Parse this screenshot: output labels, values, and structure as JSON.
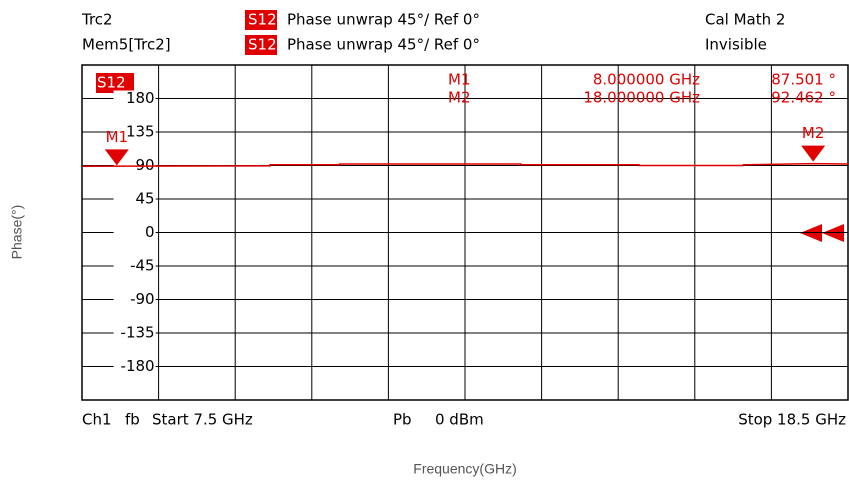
{
  "chart_data": {
    "type": "line",
    "header": [
      {
        "trace": "Trc2",
        "param": "S12",
        "format": "Phase unwrap  45°/  Ref 0°",
        "extra": "Cal Math  2"
      },
      {
        "trace": "Mem5[Trc2]",
        "param": "S12",
        "format": "Phase unwrap  45°/  Ref 0°",
        "extra": "Invisible"
      }
    ],
    "trace_label": "S12",
    "xlabel": "Frequency(GHz)",
    "ylabel": "Phase(°)",
    "xlim": [
      7.5,
      18.5
    ],
    "ylim": [
      -225,
      225
    ],
    "yticks": [
      180,
      135,
      90,
      45,
      0,
      -45,
      -90,
      -135,
      -180
    ],
    "color": "#e00000",
    "series": [
      {
        "name": "S12",
        "x": [
          7.5,
          10.2,
          10.2,
          11.2,
          11.2,
          13.8,
          13.8,
          15.5,
          15.5,
          17.0,
          17.0,
          18.0,
          18.5
        ],
        "values": [
          89,
          89.5,
          91,
          91,
          92,
          92,
          91,
          91,
          90,
          90,
          91,
          92.462,
          92
        ]
      }
    ],
    "markers": [
      {
        "name": "M1",
        "x": 8.0,
        "value": 87.501,
        "x_label": "8.000000 GHz",
        "value_label": "87.501 °"
      },
      {
        "name": "M2",
        "x": 18.0,
        "value": 92.462,
        "x_label": "18.000000 GHz",
        "value_label": "92.462 °"
      }
    ],
    "footer": [
      "Ch1",
      "fb",
      "Start 7.5 GHz",
      "Pb",
      "0 dBm",
      "Stop 18.5 GHz"
    ]
  }
}
